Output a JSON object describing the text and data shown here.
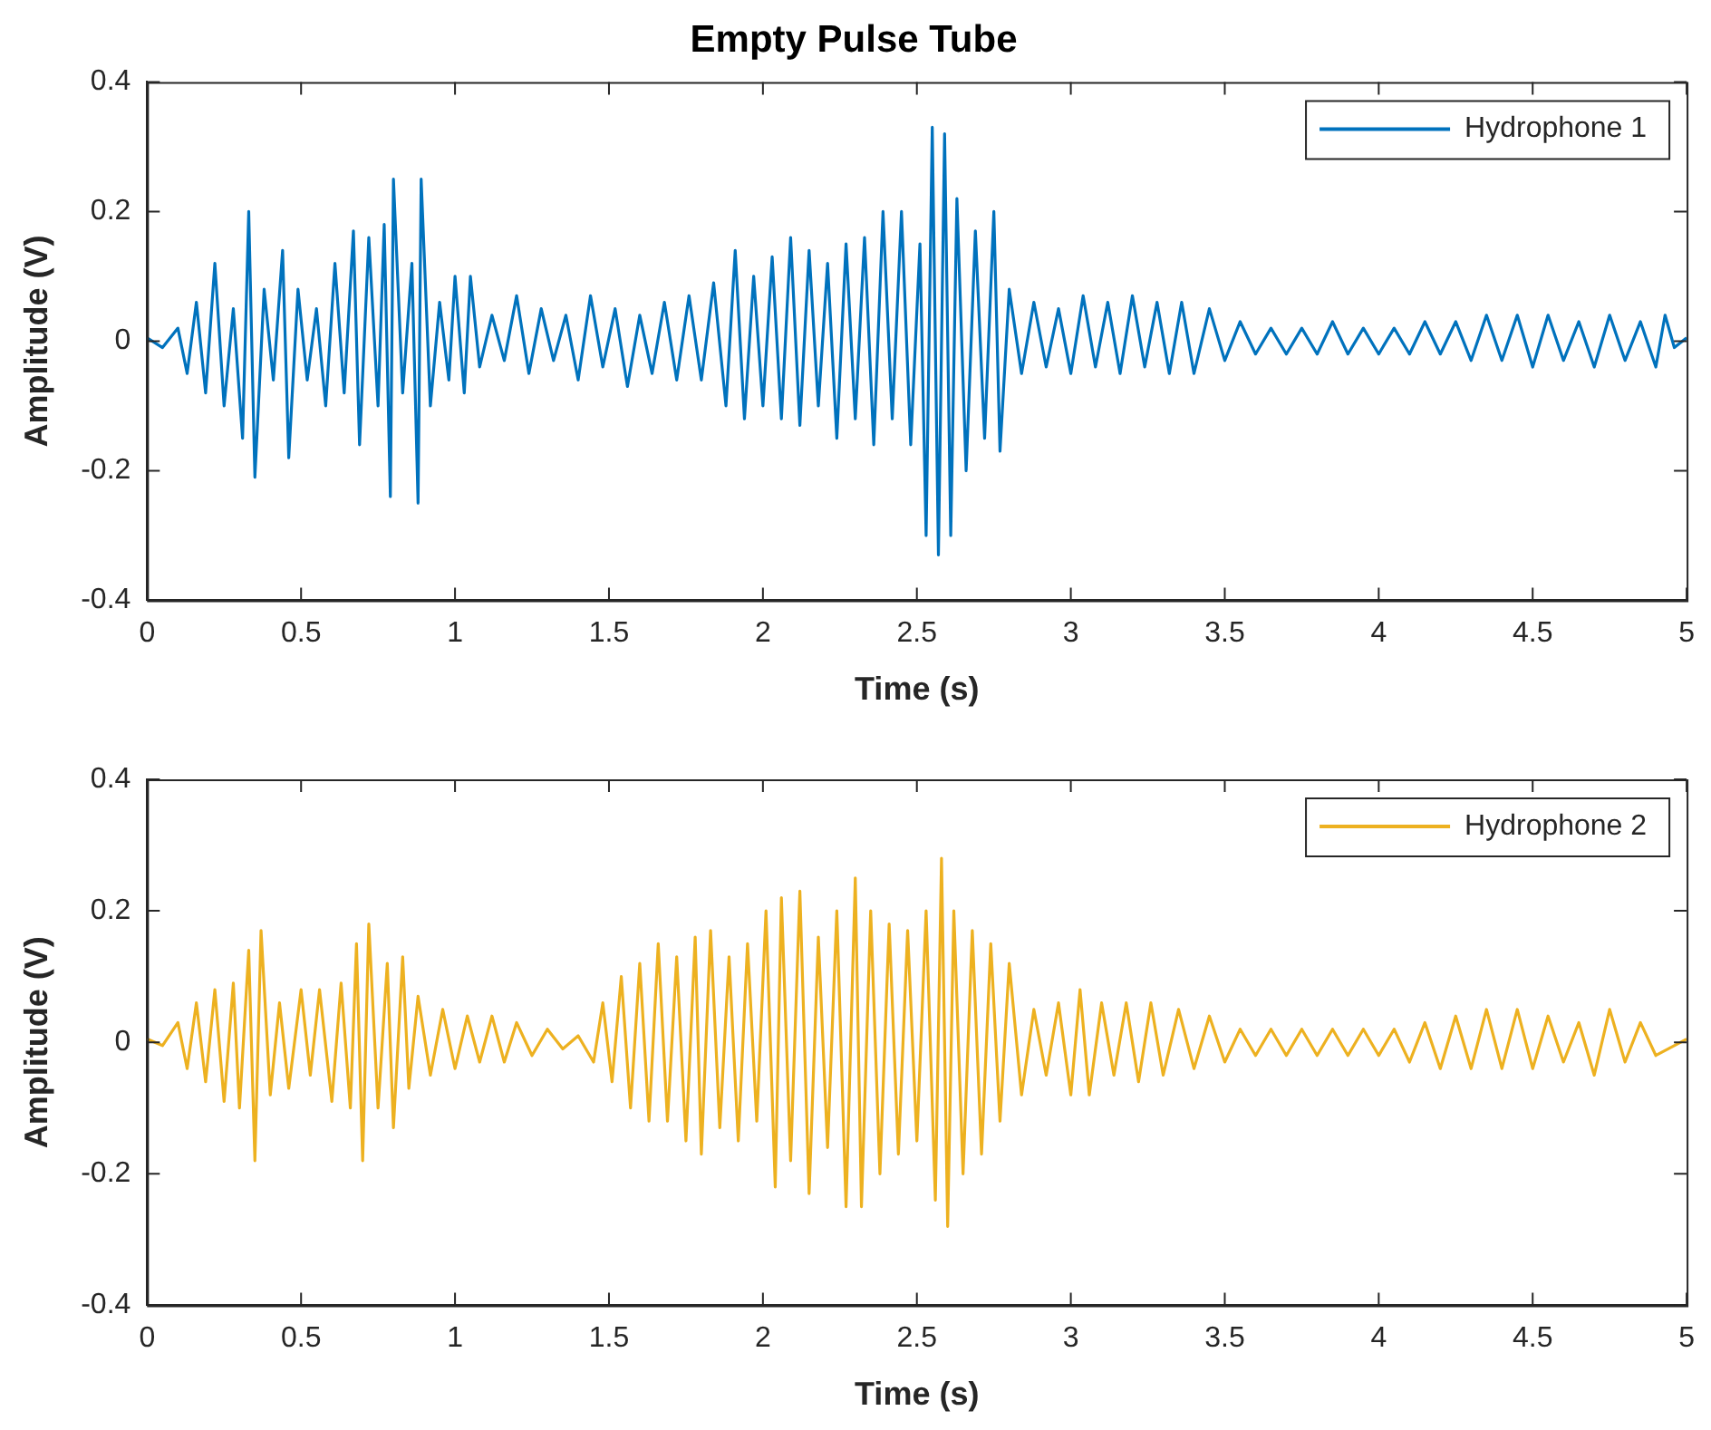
{
  "chart_data": [
    {
      "type": "line",
      "title": "Empty Pulse Tube",
      "xlabel": "Time (s)",
      "ylabel": "Amplitude (V)",
      "xlim": [
        0,
        5
      ],
      "ylim": [
        -0.4,
        0.4
      ],
      "xticks": [
        0,
        0.5,
        1,
        1.5,
        2,
        2.5,
        3,
        3.5,
        4,
        4.5,
        5
      ],
      "yticks": [
        -0.4,
        -0.2,
        0,
        0.2,
        0.4
      ],
      "legend": "top right",
      "series": [
        {
          "name": "Hydrophone 1",
          "color": "#0072bd",
          "x": [
            0,
            0.05,
            0.1,
            0.13,
            0.16,
            0.19,
            0.22,
            0.25,
            0.28,
            0.31,
            0.33,
            0.35,
            0.38,
            0.41,
            0.44,
            0.46,
            0.49,
            0.52,
            0.55,
            0.58,
            0.61,
            0.64,
            0.67,
            0.69,
            0.72,
            0.75,
            0.77,
            0.79,
            0.8,
            0.83,
            0.86,
            0.88,
            0.89,
            0.92,
            0.95,
            0.98,
            1.0,
            1.03,
            1.05,
            1.08,
            1.12,
            1.16,
            1.2,
            1.24,
            1.28,
            1.32,
            1.36,
            1.4,
            1.44,
            1.48,
            1.52,
            1.56,
            1.6,
            1.64,
            1.68,
            1.72,
            1.76,
            1.8,
            1.84,
            1.88,
            1.91,
            1.94,
            1.97,
            2.0,
            2.03,
            2.06,
            2.09,
            2.12,
            2.15,
            2.18,
            2.21,
            2.24,
            2.27,
            2.3,
            2.33,
            2.36,
            2.39,
            2.42,
            2.45,
            2.48,
            2.51,
            2.53,
            2.55,
            2.57,
            2.59,
            2.61,
            2.63,
            2.66,
            2.69,
            2.72,
            2.75,
            2.77,
            2.8,
            2.84,
            2.88,
            2.92,
            2.96,
            3.0,
            3.04,
            3.08,
            3.12,
            3.16,
            3.2,
            3.24,
            3.28,
            3.32,
            3.36,
            3.4,
            3.45,
            3.5,
            3.55,
            3.6,
            3.65,
            3.7,
            3.75,
            3.8,
            3.85,
            3.9,
            3.95,
            4.0,
            4.05,
            4.1,
            4.15,
            4.2,
            4.25,
            4.3,
            4.35,
            4.4,
            4.45,
            4.5,
            4.55,
            4.6,
            4.65,
            4.7,
            4.75,
            4.8,
            4.85,
            4.9,
            4.93,
            4.96,
            5.0
          ],
          "values": [
            0.005,
            -0.01,
            0.02,
            -0.05,
            0.06,
            -0.08,
            0.12,
            -0.1,
            0.05,
            -0.15,
            0.2,
            -0.21,
            0.08,
            -0.06,
            0.14,
            -0.18,
            0.08,
            -0.06,
            0.05,
            -0.1,
            0.12,
            -0.08,
            0.17,
            -0.16,
            0.16,
            -0.1,
            0.18,
            -0.24,
            0.25,
            -0.08,
            0.12,
            -0.25,
            0.25,
            -0.1,
            0.06,
            -0.06,
            0.1,
            -0.08,
            0.1,
            -0.04,
            0.04,
            -0.03,
            0.07,
            -0.05,
            0.05,
            -0.03,
            0.04,
            -0.06,
            0.07,
            -0.04,
            0.05,
            -0.07,
            0.04,
            -0.05,
            0.06,
            -0.06,
            0.07,
            -0.06,
            0.09,
            -0.1,
            0.14,
            -0.12,
            0.1,
            -0.1,
            0.13,
            -0.12,
            0.16,
            -0.13,
            0.14,
            -0.1,
            0.12,
            -0.15,
            0.15,
            -0.12,
            0.16,
            -0.16,
            0.2,
            -0.12,
            0.2,
            -0.16,
            0.15,
            -0.3,
            0.33,
            -0.33,
            0.32,
            -0.3,
            0.22,
            -0.2,
            0.17,
            -0.15,
            0.2,
            -0.17,
            0.08,
            -0.05,
            0.06,
            -0.04,
            0.05,
            -0.05,
            0.07,
            -0.04,
            0.06,
            -0.05,
            0.07,
            -0.04,
            0.06,
            -0.05,
            0.06,
            -0.05,
            0.05,
            -0.03,
            0.03,
            -0.02,
            0.02,
            -0.02,
            0.02,
            -0.02,
            0.03,
            -0.02,
            0.02,
            -0.02,
            0.02,
            -0.02,
            0.03,
            -0.02,
            0.03,
            -0.03,
            0.04,
            -0.03,
            0.04,
            -0.04,
            0.04,
            -0.03,
            0.03,
            -0.04,
            0.04,
            -0.03,
            0.03,
            -0.04,
            0.04,
            -0.01,
            0.005
          ]
        }
      ]
    },
    {
      "type": "line",
      "xlabel": "Time (s)",
      "ylabel": "Amplitude (V)",
      "xlim": [
        0,
        5
      ],
      "ylim": [
        -0.4,
        0.4
      ],
      "xticks": [
        0,
        0.5,
        1,
        1.5,
        2,
        2.5,
        3,
        3.5,
        4,
        4.5,
        5
      ],
      "yticks": [
        -0.4,
        -0.2,
        0,
        0.2,
        0.4
      ],
      "legend": "top right",
      "series": [
        {
          "name": "Hydrophone 2",
          "color": "#edb120",
          "x": [
            0,
            0.05,
            0.1,
            0.13,
            0.16,
            0.19,
            0.22,
            0.25,
            0.28,
            0.3,
            0.33,
            0.35,
            0.37,
            0.4,
            0.43,
            0.46,
            0.5,
            0.53,
            0.56,
            0.6,
            0.63,
            0.66,
            0.68,
            0.7,
            0.72,
            0.75,
            0.78,
            0.8,
            0.83,
            0.85,
            0.88,
            0.92,
            0.96,
            1.0,
            1.04,
            1.08,
            1.12,
            1.16,
            1.2,
            1.25,
            1.3,
            1.35,
            1.4,
            1.45,
            1.48,
            1.51,
            1.54,
            1.57,
            1.6,
            1.63,
            1.66,
            1.69,
            1.72,
            1.75,
            1.78,
            1.8,
            1.83,
            1.86,
            1.89,
            1.92,
            1.95,
            1.98,
            2.01,
            2.04,
            2.06,
            2.09,
            2.12,
            2.15,
            2.18,
            2.21,
            2.24,
            2.27,
            2.3,
            2.32,
            2.35,
            2.38,
            2.41,
            2.44,
            2.47,
            2.5,
            2.53,
            2.56,
            2.58,
            2.6,
            2.62,
            2.65,
            2.68,
            2.71,
            2.74,
            2.77,
            2.8,
            2.84,
            2.88,
            2.92,
            2.96,
            3.0,
            3.03,
            3.06,
            3.1,
            3.14,
            3.18,
            3.22,
            3.26,
            3.3,
            3.35,
            3.4,
            3.45,
            3.5,
            3.55,
            3.6,
            3.65,
            3.7,
            3.75,
            3.8,
            3.85,
            3.9,
            3.95,
            4.0,
            4.05,
            4.1,
            4.15,
            4.2,
            4.25,
            4.3,
            4.35,
            4.4,
            4.45,
            4.5,
            4.55,
            4.6,
            4.65,
            4.7,
            4.75,
            4.8,
            4.85,
            4.9,
            5.0
          ],
          "values": [
            0.005,
            -0.005,
            0.03,
            -0.04,
            0.06,
            -0.06,
            0.08,
            -0.09,
            0.09,
            -0.1,
            0.14,
            -0.18,
            0.17,
            -0.08,
            0.06,
            -0.07,
            0.08,
            -0.05,
            0.08,
            -0.09,
            0.09,
            -0.1,
            0.15,
            -0.18,
            0.18,
            -0.1,
            0.12,
            -0.13,
            0.13,
            -0.07,
            0.07,
            -0.05,
            0.05,
            -0.04,
            0.04,
            -0.03,
            0.04,
            -0.03,
            0.03,
            -0.02,
            0.02,
            -0.01,
            0.01,
            -0.03,
            0.06,
            -0.06,
            0.1,
            -0.1,
            0.12,
            -0.12,
            0.15,
            -0.12,
            0.13,
            -0.15,
            0.16,
            -0.17,
            0.17,
            -0.13,
            0.13,
            -0.15,
            0.15,
            -0.12,
            0.2,
            -0.22,
            0.22,
            -0.18,
            0.23,
            -0.23,
            0.16,
            -0.16,
            0.2,
            -0.25,
            0.25,
            -0.25,
            0.2,
            -0.2,
            0.18,
            -0.17,
            0.17,
            -0.15,
            0.2,
            -0.24,
            0.28,
            -0.28,
            0.2,
            -0.2,
            0.17,
            -0.17,
            0.15,
            -0.12,
            0.12,
            -0.08,
            0.05,
            -0.05,
            0.06,
            -0.08,
            0.08,
            -0.08,
            0.06,
            -0.05,
            0.06,
            -0.06,
            0.06,
            -0.05,
            0.05,
            -0.04,
            0.04,
            -0.03,
            0.02,
            -0.02,
            0.02,
            -0.02,
            0.02,
            -0.02,
            0.02,
            -0.02,
            0.02,
            -0.02,
            0.02,
            -0.03,
            0.03,
            -0.04,
            0.04,
            -0.04,
            0.05,
            -0.04,
            0.05,
            -0.04,
            0.04,
            -0.03,
            0.03,
            -0.05,
            0.05,
            -0.03,
            0.03,
            -0.02,
            0.005
          ]
        }
      ]
    }
  ]
}
